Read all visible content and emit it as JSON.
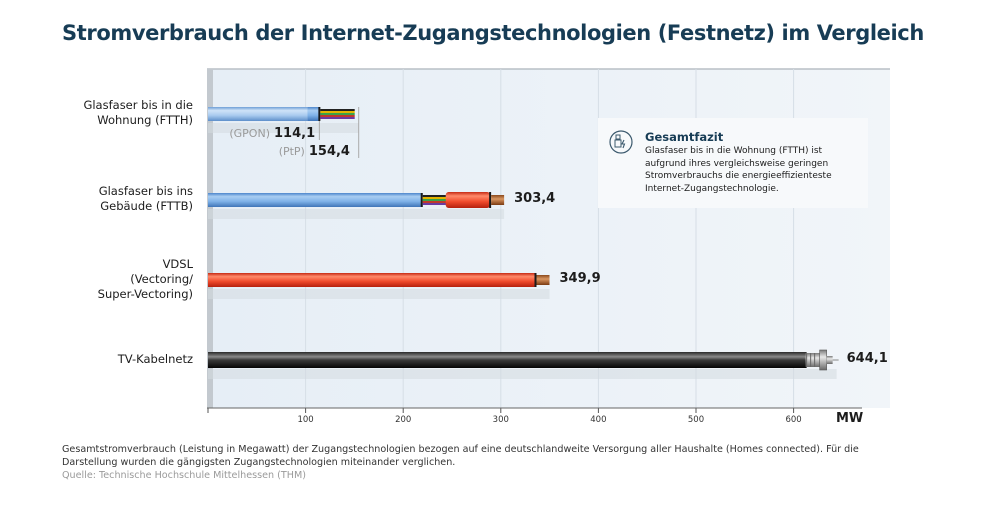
{
  "chart_data": {
    "type": "bar",
    "orientation": "horizontal",
    "title": "Stromverbrauch der Internet-Zugangstechnologien (Festnetz) im Vergleich",
    "xlabel": "MW",
    "ylabel": "",
    "xlim": [
      0,
      700
    ],
    "xticks": [
      100,
      200,
      300,
      400,
      500,
      600
    ],
    "grid": true,
    "categories": [
      "Glasfaser bis in die Wohnung (FTTH)",
      "Glasfaser bis ins Gebäude (FTTB)",
      "VDSL (Vectoring/ Super-Vectoring)",
      "TV-Kabelnetz"
    ],
    "category_lines": [
      [
        "Glasfaser bis in die",
        "Wohnung (FTTH)"
      ],
      [
        "Glasfaser bis ins",
        "Gebäude (FTTB)"
      ],
      [
        "VDSL",
        "(Vectoring/",
        "Super-Vectoring)"
      ],
      [
        "TV-Kabelnetz"
      ]
    ],
    "values": [
      154.4,
      303.4,
      349.9,
      644.1
    ],
    "value_labels": [
      "154,4",
      "303,4",
      "349,9",
      "644,1"
    ],
    "sub_values": [
      {
        "category": "Glasfaser bis in die Wohnung (FTTH)",
        "variant": "(GPON)",
        "value": 114.1,
        "label": "114,1"
      },
      {
        "category": "Glasfaser bis in die Wohnung (FTTH)",
        "variant": "(PtP)",
        "value": 154.4,
        "label": "154,4"
      }
    ],
    "segments": [
      [
        {
          "part": "fiber-blue",
          "to": 114.1
        }
      ],
      [
        {
          "part": "fiber-blue",
          "to": 220
        },
        {
          "part": "copper-red",
          "to": 303.4
        }
      ],
      [
        {
          "part": "copper-red",
          "to": 349.9
        }
      ],
      [
        {
          "part": "coax-black",
          "to": 644.1
        }
      ]
    ],
    "series_colors": {
      "fiber": "#6fa7e0",
      "copper": "#e8452a",
      "coax": "#1a1a1a"
    }
  },
  "info_box": {
    "icon": "fiber-lightning-icon",
    "title": "Gesamtfazit",
    "text": "Glasfaser bis in die Wohnung (FTTH) ist aufgrund ihres vergleichsweise geringen Stromverbrauchs die energieeffizienteste Internet-Zugangstechnologie."
  },
  "footnote": "Gesamtstromverbrauch (Leistung in Megawatt) der Zugangstechnologien bezogen auf eine deutschlandweite Versorgung aller Haushalte (Homes connected). Für die Darstellung wurden die gängigsten Zugangstechnologien miteinander verglichen.",
  "source": "Quelle: Technische Hochschule Mittelhessen (THM)",
  "colors": {
    "title": "#173c55",
    "panel": "#e9f0f7"
  }
}
